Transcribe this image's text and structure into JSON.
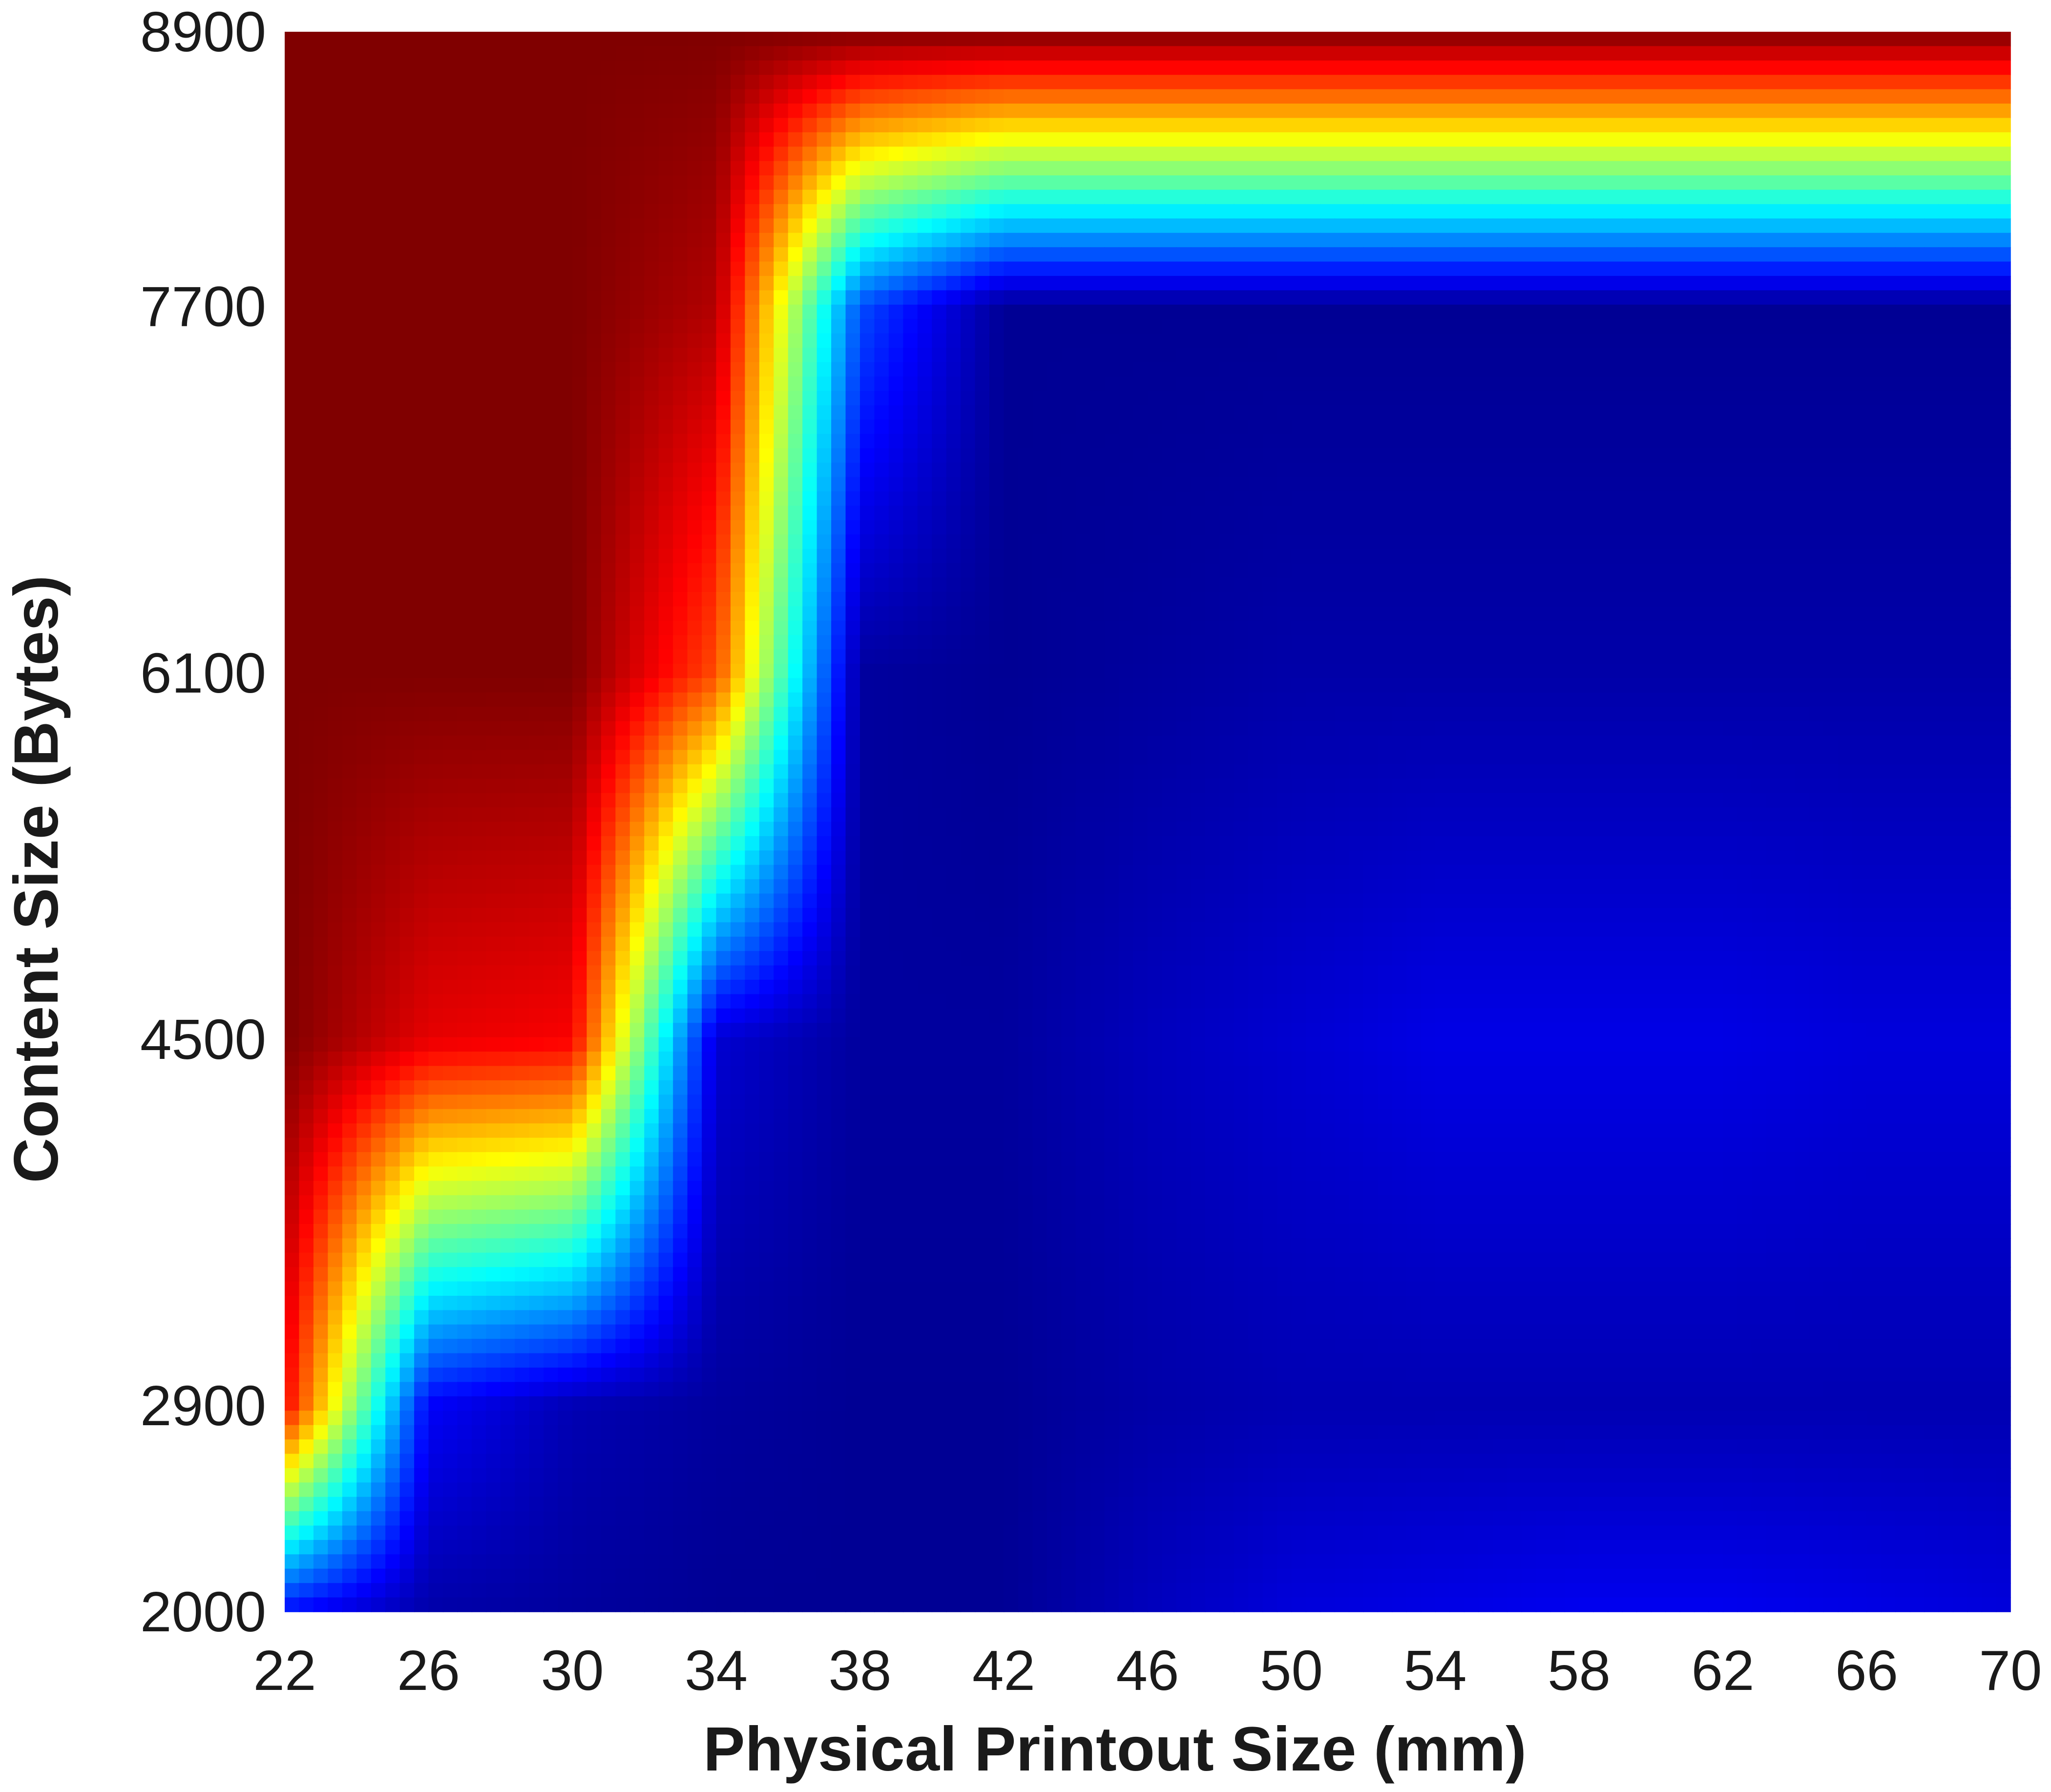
{
  "chart_data": {
    "type": "heatmap",
    "title": "",
    "xlabel": "Physical Printout Size (mm)",
    "ylabel": "Content Size (Bytes)",
    "xlim": [
      22,
      70
    ],
    "ylim": [
      2000,
      8900
    ],
    "x_ticks": [
      "22",
      "26",
      "30",
      "34",
      "38",
      "42",
      "46",
      "50",
      "54",
      "58",
      "62",
      "66",
      "70"
    ],
    "y_ticks": [
      "2000",
      "2900",
      "4500",
      "6100",
      "7700",
      "8900"
    ],
    "colormap": "jet",
    "grid": false,
    "x": [
      22,
      26,
      30,
      34,
      38,
      42,
      46,
      50,
      54,
      58,
      62,
      66,
      70
    ],
    "y": [
      2000,
      2900,
      4500,
      6100,
      7700,
      8900
    ],
    "z": [
      [
        0.13,
        0.04,
        0.03,
        0.02,
        0.02,
        0.02,
        0.06,
        0.09,
        0.1,
        0.11,
        0.11,
        0.1,
        0.09
      ],
      [
        0.88,
        0.12,
        0.05,
        0.03,
        0.02,
        0.02,
        0.04,
        0.05,
        0.05,
        0.05,
        0.05,
        0.05,
        0.05
      ],
      [
        1.0,
        0.9,
        0.88,
        0.08,
        0.03,
        0.03,
        0.06,
        0.08,
        0.1,
        0.1,
        0.1,
        0.09,
        0.09
      ],
      [
        1.0,
        1.0,
        1.0,
        0.8,
        0.03,
        0.02,
        0.03,
        0.04,
        0.04,
        0.04,
        0.04,
        0.04,
        0.04
      ],
      [
        1.0,
        1.0,
        1.0,
        0.95,
        0.2,
        0.02,
        0.02,
        0.02,
        0.02,
        0.02,
        0.02,
        0.02,
        0.02
      ],
      [
        1.0,
        1.0,
        1.0,
        1.0,
        1.0,
        1.0,
        1.0,
        1.0,
        1.0,
        1.0,
        1.0,
        1.0,
        1.0
      ]
    ]
  }
}
